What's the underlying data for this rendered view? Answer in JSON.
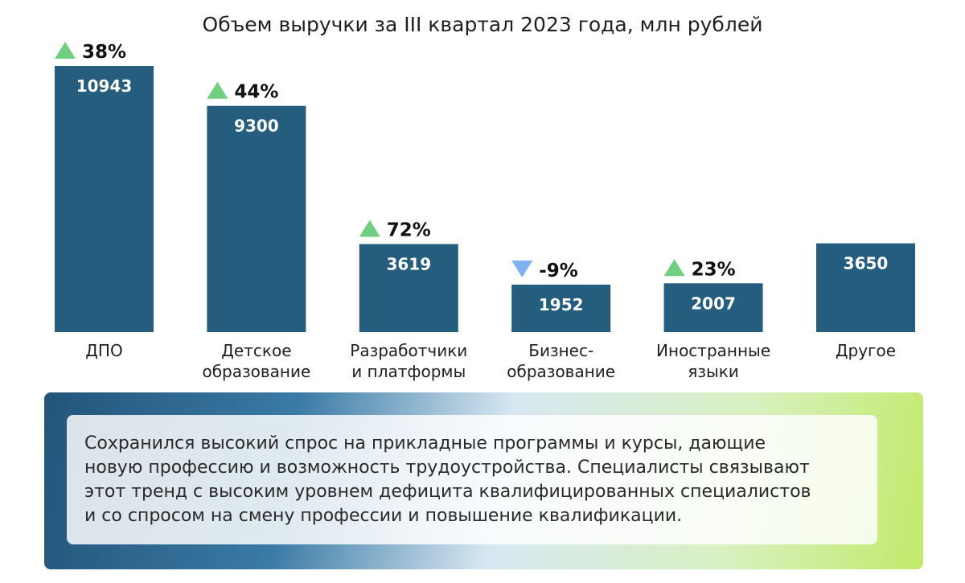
{
  "chart_data": {
    "type": "bar",
    "title": "Объем выручки за III квартал 2023 года, млн рублей",
    "xlabel": "",
    "ylabel": "",
    "ylim": [
      0,
      10943
    ],
    "grid": false,
    "categories": [
      [
        "ДПО"
      ],
      [
        "Детское",
        "образование"
      ],
      [
        "Разработчики",
        "и платформы"
      ],
      [
        "Бизнес-",
        "образование"
      ],
      [
        "Иностранные",
        "языки"
      ],
      [
        "Другое"
      ]
    ],
    "values": [
      10943,
      9300,
      3619,
      1952,
      2007,
      3650
    ],
    "value_labels": [
      "10943",
      "9300",
      "3619",
      "1952",
      "2007",
      "3650"
    ],
    "change_labels": [
      "38%",
      "44%",
      "72%",
      "-9%",
      "23%",
      ""
    ],
    "change_direction": [
      "up",
      "up",
      "up",
      "down",
      "up",
      ""
    ]
  },
  "colors": {
    "bar": "#255d7f",
    "up_triangle": "#6fcf7f",
    "down_triangle": "#7fb2f0"
  },
  "note": {
    "lines": [
      "Сохранился высокий спрос на прикладные программы и курсы, дающие",
      "новую профессию и возможность трудоустройства. Специалисты связывают",
      "этот тренд с высоким уровнем дефицита квалифицированных специалистов",
      "и со спросом на смену профессии и повышение квалификации."
    ]
  }
}
